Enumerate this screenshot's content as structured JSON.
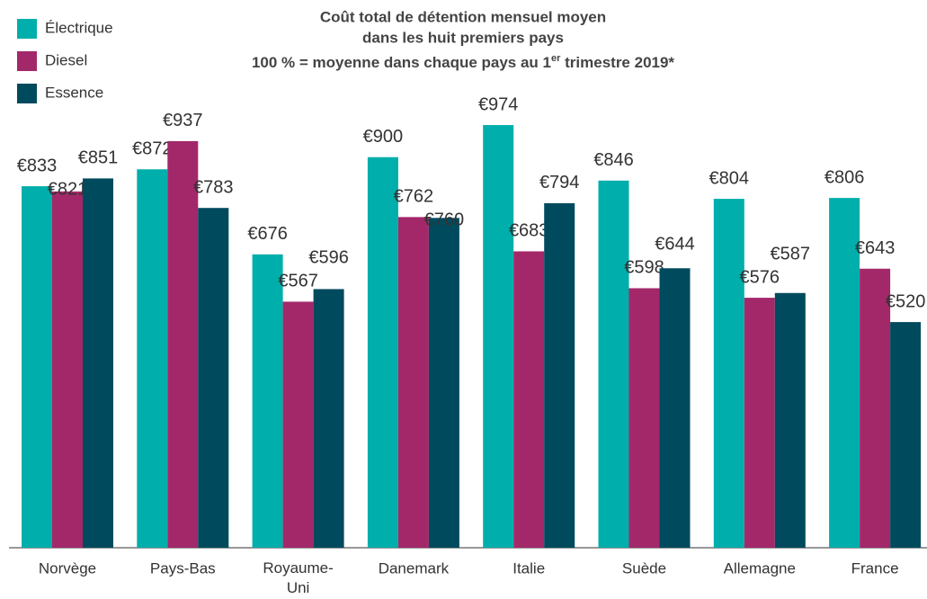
{
  "chart_data": {
    "type": "grouped_bar",
    "title_lines": [
      "Coût total de détention mensuel moyen",
      "dans les huit premiers pays"
    ],
    "subtitle_parts": [
      "100 % = moyenne dans chaque pays au 1",
      "er",
      " trimestre 2019*"
    ],
    "categories": [
      "Norvège",
      "Pays-Bas",
      "Royaume-Uni",
      "Danemark",
      "Italie",
      "Suède",
      "Allemagne",
      "France"
    ],
    "series": [
      {
        "name": "Électrique",
        "color": "#00aeab",
        "values": [
          833,
          872,
          676,
          900,
          974,
          846,
          804,
          806
        ],
        "value_labels": [
          "€833",
          "€872",
          "€676",
          "€900",
          "€974",
          "€846",
          "€804",
          "€806"
        ]
      },
      {
        "name": "Diesel",
        "color": "#a3286a",
        "values": [
          821,
          937,
          567,
          762,
          683,
          598,
          576,
          643
        ],
        "value_labels": [
          "€821",
          "€937",
          "€567",
          "€762",
          "€683",
          "€598",
          "€576",
          "€643"
        ]
      },
      {
        "name": "Essence",
        "color": "#004a5e",
        "values": [
          851,
          783,
          596,
          760,
          794,
          644,
          587,
          520
        ],
        "value_labels": [
          "€851",
          "€783",
          "€596",
          "€760",
          "€794",
          "€644",
          "€587",
          "€520"
        ]
      }
    ],
    "ylim": [
      0,
      1000
    ],
    "legend": "top-left"
  }
}
